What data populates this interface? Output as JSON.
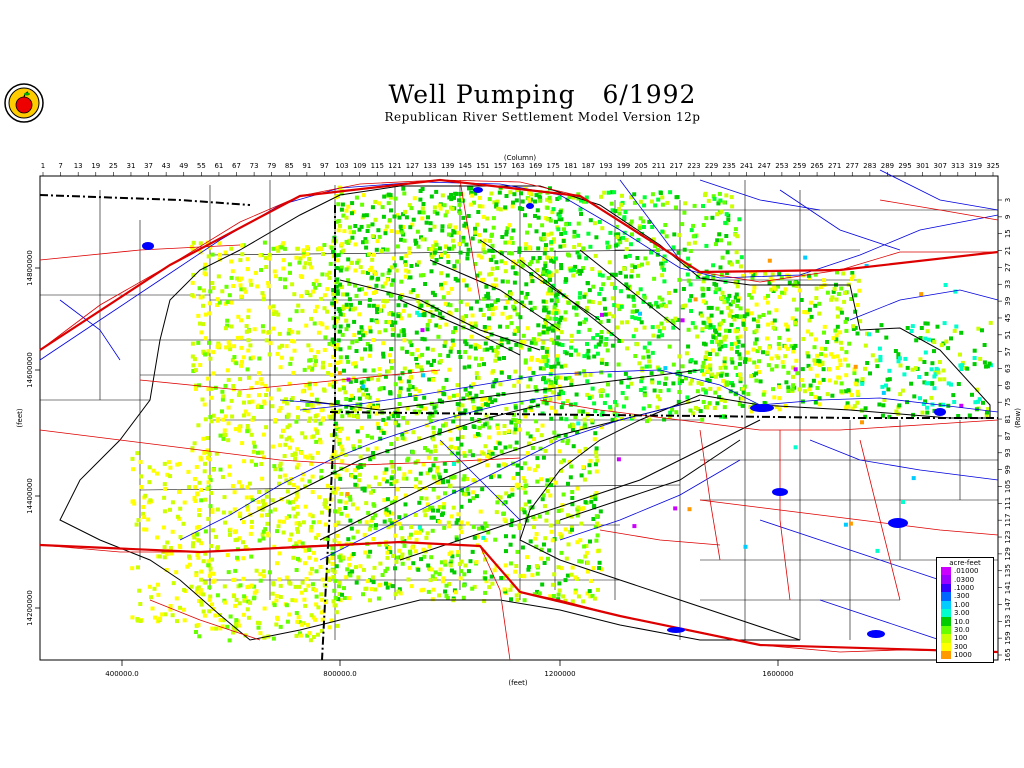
{
  "header": {
    "title": "Well Pumping   6/1992",
    "subtitle": "Republican River Settlement Model Version 12p",
    "logo_icon": "apple-logo-icon"
  },
  "axes": {
    "top_label": "(Column)",
    "bottom_label": "(feet)",
    "left_label": "(feet)",
    "right_label": "(Row)",
    "columns": [
      "1",
      "7",
      "13",
      "19",
      "25",
      "31",
      "37",
      "43",
      "49",
      "55",
      "61",
      "67",
      "73",
      "79",
      "85",
      "91",
      "97",
      "103",
      "109",
      "115",
      "121",
      "127",
      "133",
      "139",
      "145",
      "151",
      "157",
      "163",
      "169",
      "175",
      "181",
      "187",
      "193",
      "199",
      "205",
      "211",
      "217",
      "223",
      "229",
      "235",
      "241",
      "247",
      "253",
      "259",
      "265",
      "271",
      "277",
      "283",
      "289",
      "295",
      "301",
      "307",
      "313",
      "319",
      "325"
    ],
    "rows": [
      "3",
      "9",
      "15",
      "21",
      "27",
      "33",
      "39",
      "45",
      "51",
      "57",
      "63",
      "69",
      "75",
      "81",
      "87",
      "93",
      "99",
      "105",
      "111",
      "117",
      "123",
      "129",
      "135",
      "141",
      "147",
      "153",
      "159",
      "165"
    ],
    "x_ticks": [
      "400000.0",
      "800000.0",
      "1200000",
      "1600000"
    ],
    "y_ticks": [
      "14800000",
      "14600000",
      "14400000",
      "14200000"
    ]
  },
  "legend": {
    "title": "acre-feet",
    "items": [
      {
        "label": ".01000",
        "color": "#cc00ff"
      },
      {
        "label": ".0300",
        "color": "#9900ff"
      },
      {
        "label": ".1000",
        "color": "#3300ff"
      },
      {
        "label": ".300",
        "color": "#0066ff"
      },
      {
        "label": "1.00",
        "color": "#00ccff"
      },
      {
        "label": "3.00",
        "color": "#00ffcc"
      },
      {
        "label": "10.0",
        "color": "#00cc00"
      },
      {
        "label": "30.0",
        "color": "#66ff00"
      },
      {
        "label": "100",
        "color": "#ccff00"
      },
      {
        "label": "300",
        "color": "#ffff00"
      },
      {
        "label": "1000",
        "color": "#ff9900"
      }
    ]
  },
  "colors": {
    "rivers": "#0000dd",
    "roads": "#dd0000",
    "lakes": "#0000ff"
  }
}
